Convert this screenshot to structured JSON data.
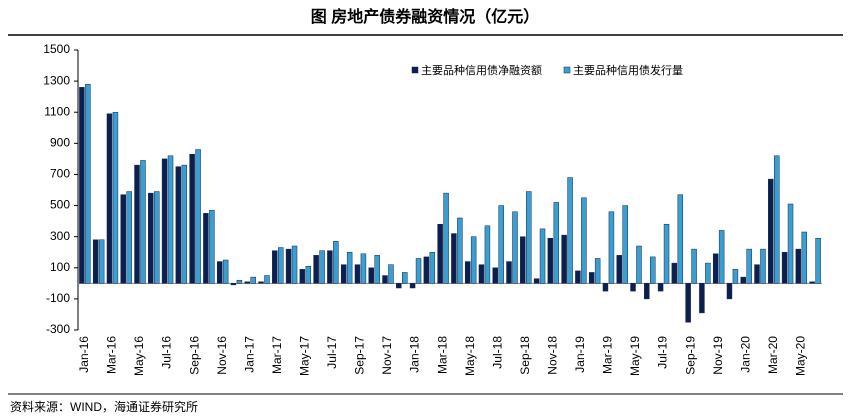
{
  "chart_data": {
    "type": "bar",
    "title": "图  房地产债券融资情况（亿元）",
    "source": "资料来源：WIND，海通证券研究所",
    "categories": [
      "Jan-16",
      null,
      "Mar-16",
      null,
      "May-16",
      null,
      "Jul-16",
      null,
      "Sep-16",
      null,
      "Nov-16",
      null,
      "Jan-17",
      null,
      "Mar-17",
      null,
      "May-17",
      null,
      "Jul-17",
      null,
      "Sep-17",
      null,
      "Nov-17",
      null,
      "Jan-18",
      null,
      "Mar-18",
      null,
      "May-18",
      null,
      "Jul-18",
      null,
      "Sep-18",
      null,
      "Nov-18",
      null,
      "Jan-19",
      null,
      "Mar-19",
      null,
      "May-19",
      null,
      "Jul-19",
      null,
      "Sep-19",
      null,
      "Nov-19",
      null,
      "Jan-20",
      null,
      "Mar-20",
      null,
      "May-20",
      null
    ],
    "series": [
      {
        "name": "主要品种信用债净融资额",
        "color": "#0d1f4f",
        "values": [
          1260,
          280,
          1090,
          570,
          760,
          580,
          800,
          750,
          830,
          450,
          140,
          -10,
          10,
          10,
          210,
          220,
          90,
          180,
          210,
          120,
          120,
          100,
          50,
          -30,
          -30,
          170,
          380,
          320,
          140,
          120,
          100,
          140,
          300,
          30,
          290,
          310,
          80,
          70,
          -50,
          180,
          -50,
          -100,
          -50,
          130,
          -250,
          -190,
          190,
          -100,
          40,
          120,
          670,
          200,
          220,
          10
        ]
      },
      {
        "name": "主要品种信用债发行量",
        "color": "#3a9fd0",
        "values": [
          1280,
          280,
          1100,
          590,
          790,
          590,
          820,
          760,
          860,
          470,
          150,
          20,
          40,
          50,
          230,
          240,
          110,
          210,
          270,
          200,
          190,
          180,
          120,
          70,
          160,
          200,
          580,
          420,
          300,
          370,
          500,
          460,
          590,
          350,
          520,
          680,
          550,
          160,
          460,
          500,
          240,
          170,
          380,
          570,
          220,
          130,
          340,
          90,
          220,
          220,
          820,
          510,
          330,
          290
        ]
      }
    ],
    "ylim": [
      -300,
      1500
    ],
    "yticks": [
      -300,
      -100,
      100,
      300,
      500,
      700,
      900,
      1100,
      1300,
      1500
    ],
    "legend": "top-right",
    "grid": false
  }
}
